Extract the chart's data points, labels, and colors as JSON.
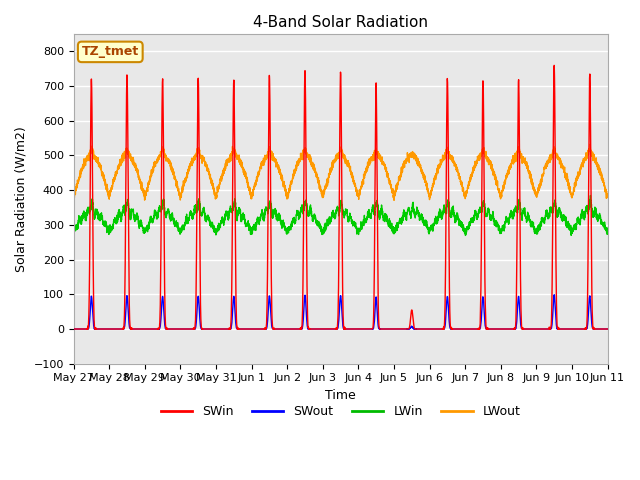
{
  "title": "4-Band Solar Radiation",
  "xlabel": "Time",
  "ylabel": "Solar Radiation (W/m2)",
  "ylim": [
    -100,
    850
  ],
  "yticks": [
    -100,
    0,
    100,
    200,
    300,
    400,
    500,
    600,
    700,
    800
  ],
  "x_tick_labels": [
    "May 27",
    "May 28",
    "May 29",
    "May 30",
    "May 31",
    "Jun 1",
    "Jun 2",
    "Jun 3",
    "Jun 4",
    "Jun 5",
    "Jun 6",
    "Jun 7",
    "Jun 8",
    "Jun 9",
    "Jun 10",
    "Jun 11"
  ],
  "legend_labels": [
    "SWin",
    "SWout",
    "LWin",
    "LWout"
  ],
  "legend_colors": [
    "#ff0000",
    "#0000ff",
    "#00bb00",
    "#ff9900"
  ],
  "annotation_text": "TZ_tmet",
  "annotation_fgcolor": "#aa4400",
  "annotation_bgcolor": "#ffffcc",
  "annotation_edgecolor": "#cc8800",
  "line_colors": {
    "SWin": "#ff0000",
    "SWout": "#0000ff",
    "LWin": "#00cc00",
    "LWout": "#ff9900"
  },
  "background_color": "#ffffff",
  "plot_bg_color": "#e8e8e8",
  "grid_color": "#ffffff",
  "num_days": 15,
  "points_per_day": 288
}
